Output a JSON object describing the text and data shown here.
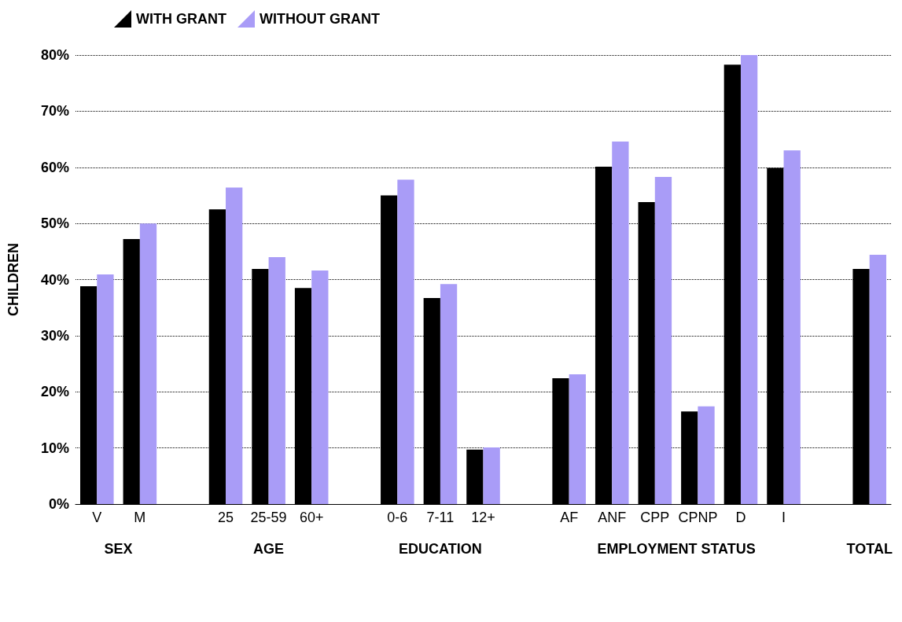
{
  "chart_data": {
    "type": "bar",
    "ylabel": "CHILDREN",
    "categories": [
      "V",
      "M",
      null,
      "25",
      "25-59",
      "60+",
      null,
      "0-6",
      "7-11",
      "12+",
      null,
      "AF",
      "ANF",
      "CPP",
      "CPNP",
      "D",
      "I",
      null,
      null
    ],
    "series": [
      {
        "name": "WITH GRANT",
        "color": "#000000",
        "values": [
          38.8,
          47.2,
          null,
          52.5,
          41.9,
          38.5,
          null,
          55.0,
          36.7,
          9.7,
          null,
          22.4,
          60.1,
          53.8,
          16.5,
          78.3,
          59.9,
          null,
          41.9
        ]
      },
      {
        "name": "WITHOUT GRANT",
        "color": "#a99cf7",
        "values": [
          40.9,
          50.0,
          null,
          56.4,
          44.0,
          41.6,
          null,
          57.8,
          39.2,
          10.1,
          null,
          23.1,
          64.6,
          58.3,
          17.4,
          80.0,
          63.0,
          null,
          44.4
        ]
      }
    ],
    "annotations": [
      "SEX",
      "AGE",
      "EDUCATION",
      "EMPLOYMENT STATUS",
      "TOTAL"
    ],
    "ylim": [
      0,
      80
    ],
    "yticks": [
      {
        "value": 0,
        "label": "0%"
      },
      {
        "value": 10,
        "label": "10%"
      },
      {
        "value": 20,
        "label": "20%"
      },
      {
        "value": 30,
        "label": "30%"
      },
      {
        "value": 40,
        "label": "40%"
      },
      {
        "value": 50,
        "label": "50%"
      },
      {
        "value": 60,
        "label": "60%"
      },
      {
        "value": 70,
        "label": "70%"
      },
      {
        "value": 80,
        "label": "80%"
      }
    ],
    "grid": "y",
    "legend": "top left"
  }
}
